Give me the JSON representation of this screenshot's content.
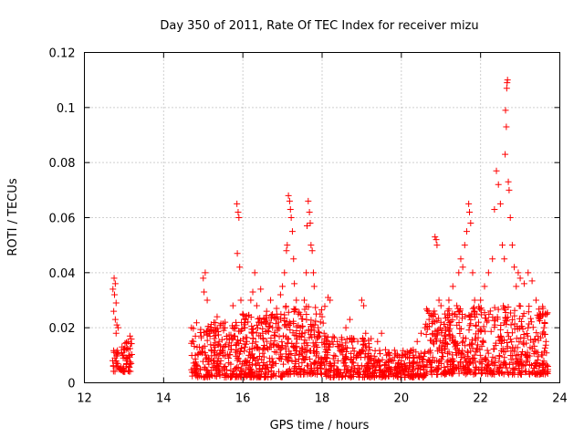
{
  "chart_data": {
    "type": "scatter",
    "title": "Day 350 of 2011, Rate Of TEC Index for receiver mizu",
    "xlabel": "GPS time / hours",
    "ylabel": "ROTI / TECUs",
    "xlim": [
      12,
      24
    ],
    "ylim": [
      0,
      0.12
    ],
    "xticks": [
      12,
      14,
      16,
      18,
      20,
      22,
      24
    ],
    "xtick_labels": [
      "12",
      "14",
      "16",
      "18",
      "20",
      "22",
      "24"
    ],
    "yticks": [
      0,
      0.02,
      0.04,
      0.06,
      0.08,
      0.1,
      0.12
    ],
    "ytick_labels": [
      "0",
      "0.02",
      "0.04",
      "0.06",
      "0.08",
      "0.1",
      "0.12"
    ],
    "grid": true,
    "marker": "+",
    "color": "#ff0000",
    "series": [
      {
        "name": "ROTI",
        "points": [
          [
            12.75,
            0.038
          ],
          [
            12.78,
            0.036
          ],
          [
            12.72,
            0.034
          ],
          [
            12.76,
            0.032
          ],
          [
            12.8,
            0.029
          ],
          [
            12.74,
            0.026
          ],
          [
            12.78,
            0.023
          ],
          [
            12.82,
            0.021
          ],
          [
            12.85,
            0.02
          ],
          [
            12.8,
            0.018
          ],
          [
            12.77,
            0.009
          ],
          [
            12.8,
            0.008
          ],
          [
            12.83,
            0.007
          ],
          [
            12.86,
            0.006
          ],
          [
            12.9,
            0.005
          ],
          [
            12.73,
            0.006
          ],
          [
            12.95,
            0.013
          ],
          [
            13.0,
            0.01
          ],
          [
            13.05,
            0.012
          ],
          [
            13.1,
            0.015
          ],
          [
            13.15,
            0.017
          ],
          [
            13.08,
            0.008
          ],
          [
            13.12,
            0.006
          ],
          [
            13.18,
            0.007
          ],
          [
            13.02,
            0.004
          ],
          [
            12.98,
            0.009
          ],
          [
            14.7,
            0.02
          ],
          [
            14.75,
            0.015
          ],
          [
            14.8,
            0.01
          ],
          [
            14.85,
            0.006
          ],
          [
            14.9,
            0.013
          ],
          [
            14.95,
            0.017
          ],
          [
            15.0,
            0.038
          ],
          [
            15.05,
            0.04
          ],
          [
            15.1,
            0.03
          ],
          [
            15.02,
            0.033
          ],
          [
            15.15,
            0.018
          ],
          [
            15.2,
            0.012
          ],
          [
            15.25,
            0.008
          ],
          [
            15.3,
            0.02
          ],
          [
            15.35,
            0.024
          ],
          [
            15.4,
            0.015
          ],
          [
            15.5,
            0.01
          ],
          [
            15.55,
            0.022
          ],
          [
            15.6,
            0.016
          ],
          [
            15.7,
            0.012
          ],
          [
            15.75,
            0.028
          ],
          [
            15.8,
            0.02
          ],
          [
            15.85,
            0.065
          ],
          [
            15.88,
            0.062
          ],
          [
            15.9,
            0.06
          ],
          [
            15.86,
            0.047
          ],
          [
            15.92,
            0.042
          ],
          [
            15.95,
            0.03
          ],
          [
            16.0,
            0.025
          ],
          [
            16.05,
            0.02
          ],
          [
            16.1,
            0.015
          ],
          [
            16.15,
            0.01
          ],
          [
            16.2,
            0.03
          ],
          [
            16.25,
            0.033
          ],
          [
            16.3,
            0.04
          ],
          [
            16.35,
            0.028
          ],
          [
            16.4,
            0.022
          ],
          [
            16.45,
            0.034
          ],
          [
            16.5,
            0.018
          ],
          [
            16.55,
            0.012
          ],
          [
            16.6,
            0.026
          ],
          [
            16.7,
            0.03
          ],
          [
            16.75,
            0.02
          ],
          [
            16.8,
            0.014
          ],
          [
            16.85,
            0.027
          ],
          [
            16.9,
            0.022
          ],
          [
            16.95,
            0.032
          ],
          [
            17.0,
            0.035
          ],
          [
            17.05,
            0.04
          ],
          [
            17.1,
            0.048
          ],
          [
            17.12,
            0.05
          ],
          [
            17.15,
            0.068
          ],
          [
            17.18,
            0.066
          ],
          [
            17.2,
            0.063
          ],
          [
            17.22,
            0.06
          ],
          [
            17.25,
            0.055
          ],
          [
            17.28,
            0.045
          ],
          [
            17.3,
            0.036
          ],
          [
            17.35,
            0.03
          ],
          [
            17.4,
            0.025
          ],
          [
            17.45,
            0.02
          ],
          [
            17.5,
            0.018
          ],
          [
            17.55,
            0.03
          ],
          [
            17.6,
            0.04
          ],
          [
            17.62,
            0.057
          ],
          [
            17.65,
            0.066
          ],
          [
            17.68,
            0.062
          ],
          [
            17.7,
            0.058
          ],
          [
            17.72,
            0.05
          ],
          [
            17.75,
            0.048
          ],
          [
            17.78,
            0.04
          ],
          [
            17.8,
            0.035
          ],
          [
            17.85,
            0.025
          ],
          [
            17.9,
            0.02
          ],
          [
            17.95,
            0.025
          ],
          [
            18.0,
            0.024
          ],
          [
            18.05,
            0.018
          ],
          [
            18.1,
            0.012
          ],
          [
            18.15,
            0.031
          ],
          [
            18.2,
            0.03
          ],
          [
            18.25,
            0.015
          ],
          [
            18.3,
            0.01
          ],
          [
            18.4,
            0.008
          ],
          [
            18.5,
            0.012
          ],
          [
            18.6,
            0.02
          ],
          [
            18.7,
            0.023
          ],
          [
            18.8,
            0.016
          ],
          [
            18.9,
            0.01
          ],
          [
            19.0,
            0.03
          ],
          [
            19.05,
            0.028
          ],
          [
            19.1,
            0.018
          ],
          [
            19.2,
            0.012
          ],
          [
            19.3,
            0.008
          ],
          [
            19.4,
            0.015
          ],
          [
            19.5,
            0.018
          ],
          [
            19.6,
            0.012
          ],
          [
            19.7,
            0.01
          ],
          [
            19.8,
            0.008
          ],
          [
            19.9,
            0.006
          ],
          [
            20.0,
            0.008
          ],
          [
            20.1,
            0.006
          ],
          [
            20.2,
            0.009
          ],
          [
            20.3,
            0.012
          ],
          [
            20.4,
            0.015
          ],
          [
            20.5,
            0.018
          ],
          [
            20.6,
            0.02
          ],
          [
            20.7,
            0.023
          ],
          [
            20.8,
            0.025
          ],
          [
            20.85,
            0.053
          ],
          [
            20.88,
            0.052
          ],
          [
            20.9,
            0.05
          ],
          [
            20.95,
            0.03
          ],
          [
            21.0,
            0.028
          ],
          [
            21.1,
            0.025
          ],
          [
            21.2,
            0.03
          ],
          [
            21.3,
            0.035
          ],
          [
            21.4,
            0.028
          ],
          [
            21.45,
            0.04
          ],
          [
            21.5,
            0.045
          ],
          [
            21.55,
            0.042
          ],
          [
            21.6,
            0.05
          ],
          [
            21.65,
            0.055
          ],
          [
            21.7,
            0.065
          ],
          [
            21.72,
            0.062
          ],
          [
            21.75,
            0.058
          ],
          [
            21.8,
            0.04
          ],
          [
            21.85,
            0.03
          ],
          [
            21.9,
            0.025
          ],
          [
            21.95,
            0.022
          ],
          [
            22.0,
            0.03
          ],
          [
            22.1,
            0.035
          ],
          [
            22.2,
            0.04
          ],
          [
            22.3,
            0.045
          ],
          [
            22.35,
            0.063
          ],
          [
            22.4,
            0.077
          ],
          [
            22.45,
            0.072
          ],
          [
            22.5,
            0.065
          ],
          [
            22.55,
            0.05
          ],
          [
            22.6,
            0.045
          ],
          [
            22.62,
            0.083
          ],
          [
            22.63,
            0.099
          ],
          [
            22.65,
            0.093
          ],
          [
            22.66,
            0.107
          ],
          [
            22.67,
            0.109
          ],
          [
            22.68,
            0.11
          ],
          [
            22.7,
            0.073
          ],
          [
            22.72,
            0.07
          ],
          [
            22.75,
            0.06
          ],
          [
            22.8,
            0.05
          ],
          [
            22.85,
            0.042
          ],
          [
            22.9,
            0.035
          ],
          [
            22.95,
            0.04
          ],
          [
            23.0,
            0.038
          ],
          [
            23.1,
            0.036
          ],
          [
            23.2,
            0.04
          ],
          [
            23.3,
            0.037
          ],
          [
            23.4,
            0.03
          ],
          [
            23.5,
            0.025
          ],
          [
            23.6,
            0.02
          ],
          [
            23.65,
            0.015
          ]
        ]
      }
    ],
    "band_clusters": [
      [
        12.7,
        12.95,
        0.004,
        0.012,
        20
      ],
      [
        12.95,
        13.2,
        0.004,
        0.016,
        35
      ],
      [
        14.7,
        15.9,
        0.002,
        0.022,
        220
      ],
      [
        15.9,
        17.0,
        0.002,
        0.025,
        240
      ],
      [
        17.0,
        18.1,
        0.003,
        0.028,
        220
      ],
      [
        18.1,
        19.3,
        0.002,
        0.017,
        200
      ],
      [
        19.3,
        20.6,
        0.002,
        0.012,
        200
      ],
      [
        20.6,
        21.8,
        0.003,
        0.027,
        260
      ],
      [
        21.8,
        23.7,
        0.003,
        0.028,
        360
      ]
    ]
  }
}
